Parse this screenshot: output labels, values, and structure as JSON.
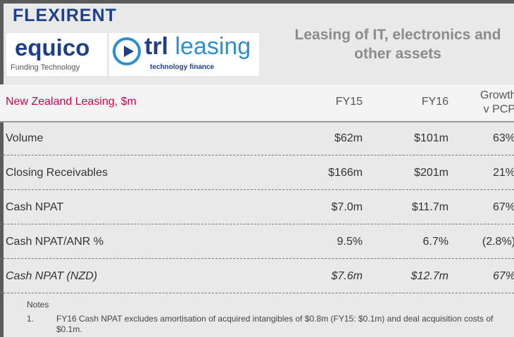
{
  "header": {
    "logos": [
      "FLEXIRENT",
      "equico",
      "Funding Technology",
      "trl",
      "leasing",
      "technology finance"
    ],
    "title": "Leasing of IT, electronics and other assets"
  },
  "table": {
    "columns": [
      "New Zealand Leasing, $m",
      "FY15",
      "FY16",
      "Growth v PCP"
    ],
    "rows": [
      [
        "Volume",
        "$62m",
        "$101m",
        "63%"
      ],
      [
        "Closing Receivables",
        "$166m",
        "$201m",
        "21%"
      ],
      [
        "Cash NPAT",
        "$7.0m",
        "$11.7m",
        "67%"
      ],
      [
        "Cash NPAT/ANR %",
        "9.5%",
        "6.7%",
        "(2.8%)"
      ],
      [
        "Cash NPAT  (NZD)",
        "$7.6m",
        "$12.7m",
        "67%"
      ]
    ]
  },
  "notes": {
    "heading": "Notes",
    "items": [
      {
        "number": "1.",
        "text": "FY16 Cash NPAT excludes amortisation of acquired intangibles of $0.8m (FY15: $0.1m) and deal acquisition costs of $0.1m."
      }
    ]
  }
}
